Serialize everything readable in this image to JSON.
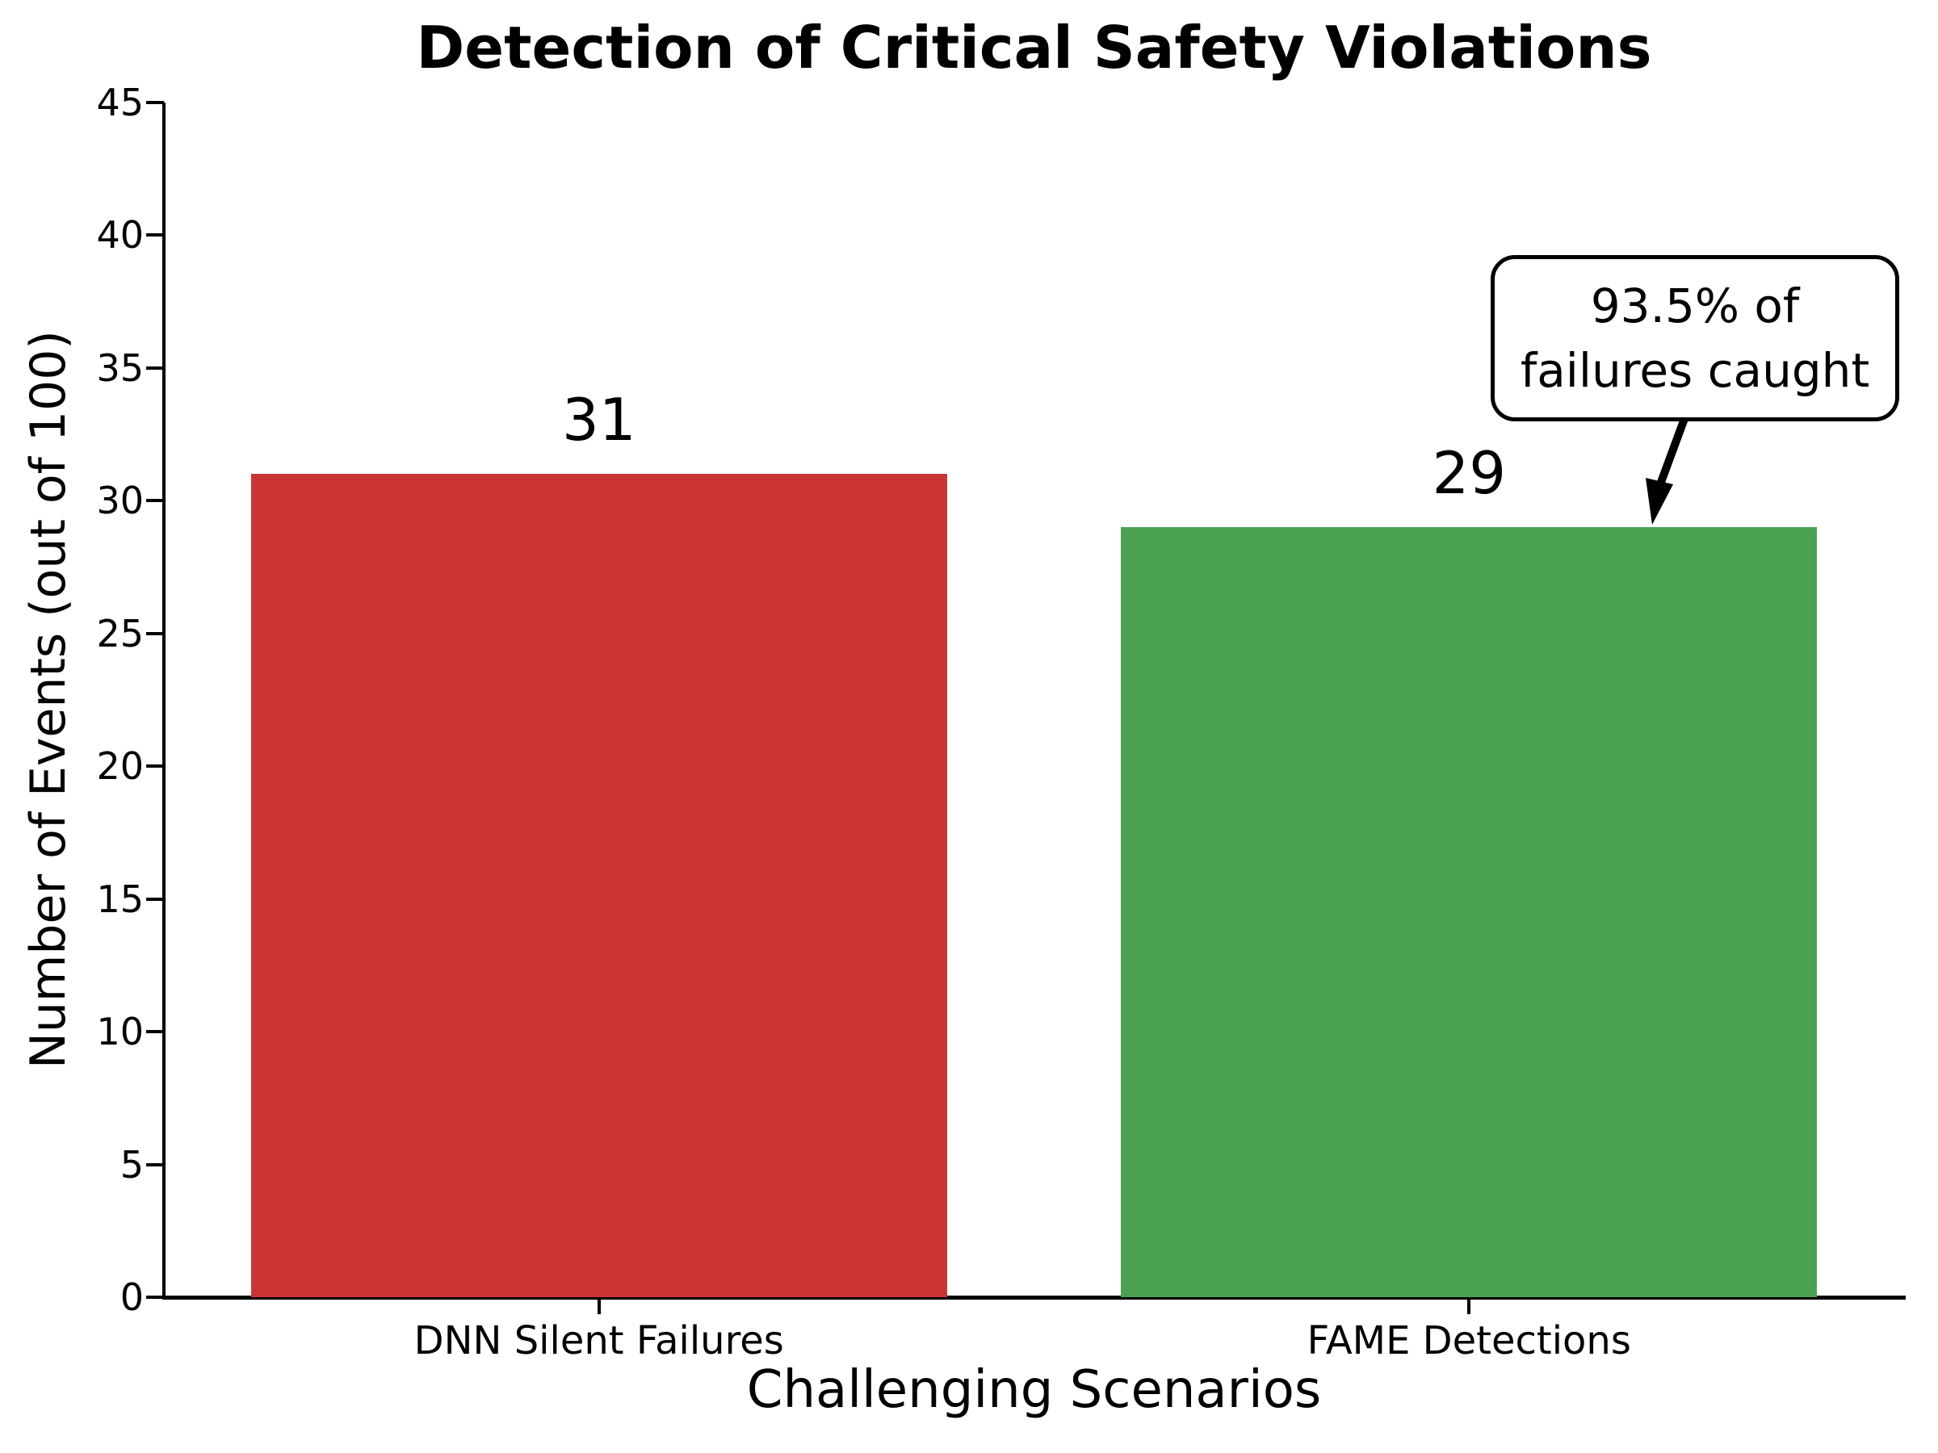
{
  "chart_data": {
    "type": "bar",
    "title": "Detection of Critical Safety Violations",
    "xlabel": "Challenging Scenarios",
    "ylabel": "Number of Events (out of 100)",
    "categories": [
      "DNN Silent Failures",
      "FAME Detections"
    ],
    "values": [
      31,
      29
    ],
    "bar_value_labels": [
      "31",
      "29"
    ],
    "colors": [
      "#cb3434",
      "#4aa152"
    ],
    "ylim": [
      0,
      45
    ],
    "yticks": [
      0,
      5,
      10,
      15,
      20,
      25,
      30,
      35,
      40,
      45
    ],
    "grid": false,
    "legend": null,
    "annotation": {
      "text": "93.5% of\nfailures caught",
      "points_to": "FAME Detections bar top"
    },
    "axis_color": "#000000",
    "background_color": "#ffffff"
  }
}
